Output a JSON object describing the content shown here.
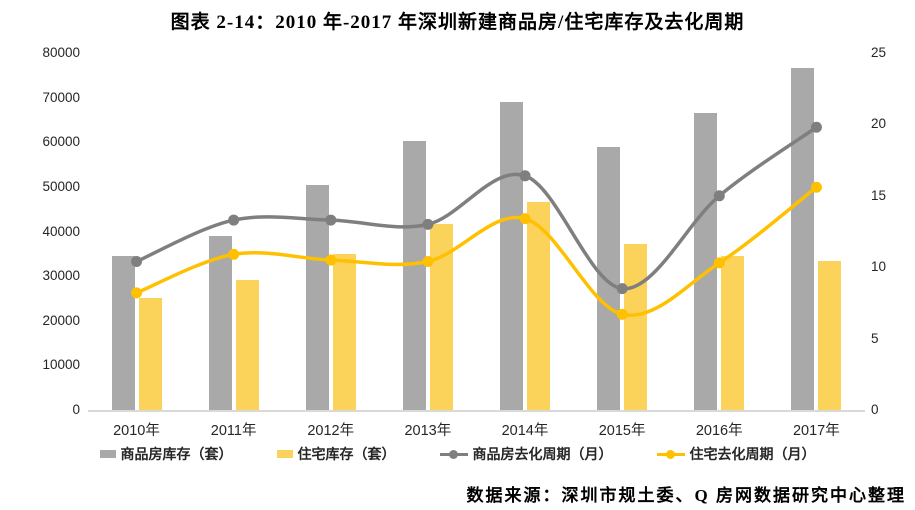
{
  "title": "图表 2-14：2010 年-2017 年深圳新建商品房/住宅库存及去化周期",
  "source": "数据来源：深圳市规土委、Q 房网数据研究中心整理",
  "colors": {
    "bar_gray": "#A9A9A9",
    "bar_yellow": "#FBD35B",
    "line_gray": "#7F7F7F",
    "line_yellow": "#FFC000",
    "axis_line": "#D9D9D9",
    "text": "#262626"
  },
  "chart_data": {
    "type": "bar",
    "subtype": "combo-bar-line-dual-axis",
    "title": "图表 2-14：2010 年-2017 年深圳新建商品房/住宅库存及去化周期",
    "categories": [
      "2010年",
      "2011年",
      "2012年",
      "2013年",
      "2014年",
      "2015年",
      "2016年",
      "2017年"
    ],
    "series": [
      {
        "name": "商品房库存（套）",
        "type": "bar",
        "axis": "left",
        "color": "#A9A9A9",
        "values": [
          34600,
          38900,
          50400,
          60200,
          69100,
          58900,
          66500,
          76700
        ]
      },
      {
        "name": "住宅库存（套）",
        "type": "bar",
        "axis": "left",
        "color": "#FBD35B",
        "values": [
          25200,
          29100,
          35000,
          41700,
          46700,
          37300,
          34500,
          33500
        ]
      },
      {
        "name": "商品房去化周期（月）",
        "type": "line",
        "axis": "right",
        "color": "#7F7F7F",
        "values": [
          10.4,
          13.3,
          13.3,
          13.0,
          16.4,
          8.5,
          15.0,
          19.8
        ]
      },
      {
        "name": "住宅去化周期（月）",
        "type": "line",
        "axis": "right",
        "color": "#FFC000",
        "values": [
          8.2,
          10.9,
          10.5,
          10.4,
          13.4,
          6.7,
          10.3,
          15.6
        ]
      }
    ],
    "left_axis": {
      "min": 0,
      "max": 80000,
      "step": 10000,
      "ticks": [
        "80000",
        "70000",
        "60000",
        "50000",
        "40000",
        "30000",
        "20000",
        "10000",
        "0"
      ]
    },
    "right_axis": {
      "min": 0,
      "max": 25,
      "step": 5,
      "ticks": [
        "25",
        "20",
        "15",
        "10",
        "5",
        "0"
      ]
    },
    "grid": false,
    "legend_position": "bottom"
  }
}
